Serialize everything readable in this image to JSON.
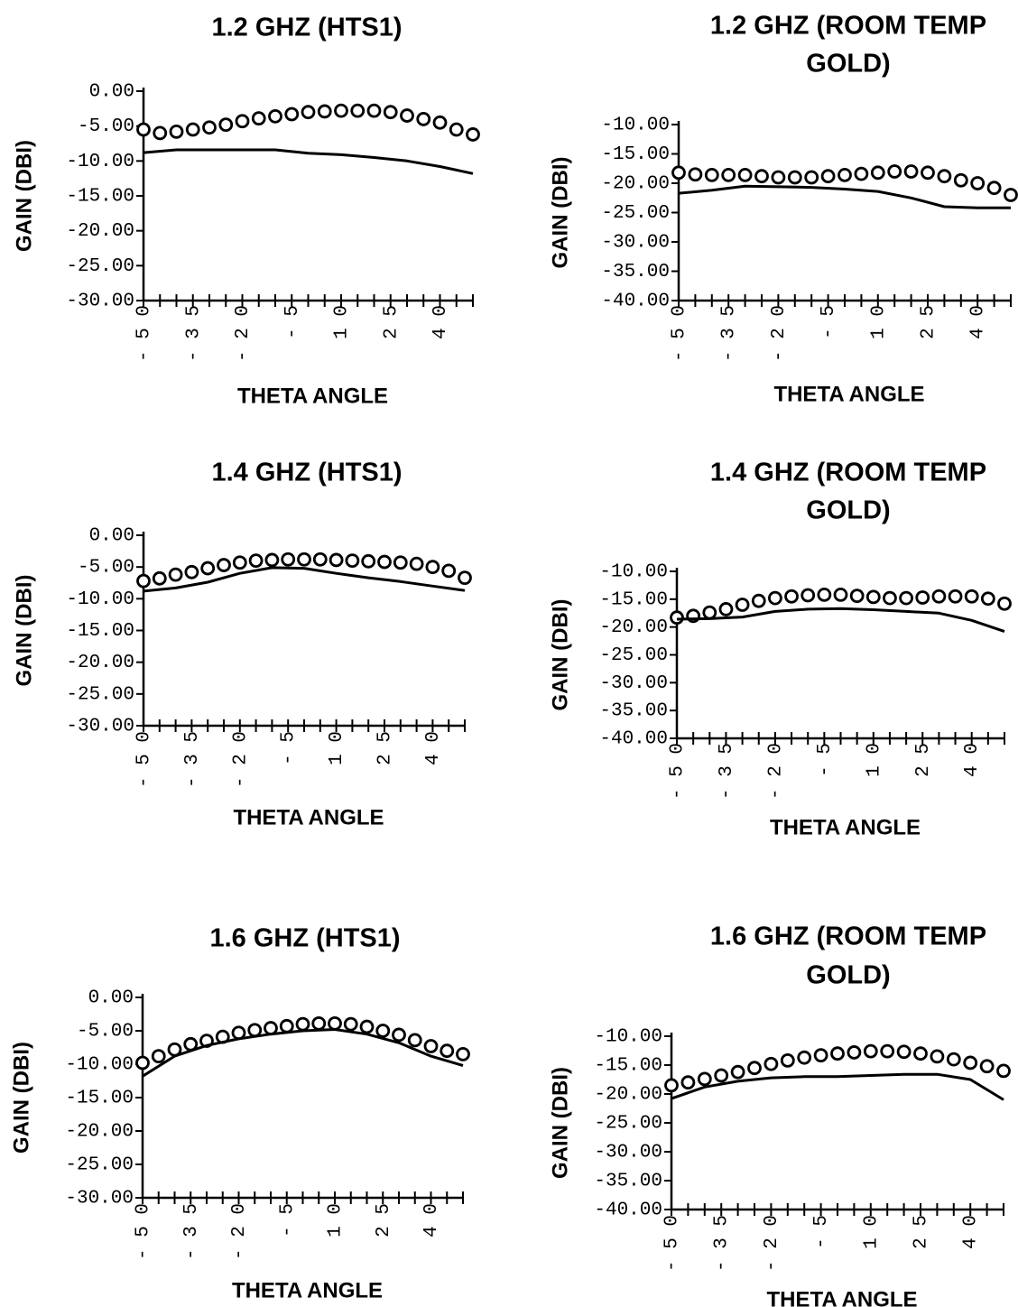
{
  "chart_data": [
    {
      "type": "line",
      "title_lines": [
        "1.2  GHZ  (HTS1)"
      ],
      "xlabel": "THETA ANGLE",
      "ylabel": "GAIN  (DBI)",
      "ylim": [
        -30,
        0
      ],
      "y_tick_labels": [
        "0.00",
        "-5.00",
        "-10.00",
        "-15.00",
        "-20.00",
        "-25.00",
        "-30.00"
      ],
      "x_tick_labels": [
        "-50",
        "-35",
        "-20",
        "-5",
        "10",
        "25",
        "40"
      ],
      "xlim": [
        -50,
        50
      ],
      "series": [
        {
          "marker": "circle",
          "x": [
            -50,
            -45,
            -40,
            -35,
            -30,
            -25,
            -20,
            -15,
            -10,
            -5,
            0,
            5,
            10,
            15,
            20,
            25,
            30,
            35,
            40,
            45,
            50
          ],
          "y": [
            -5.5,
            -6.0,
            -5.8,
            -5.5,
            -5.2,
            -4.8,
            -4.3,
            -3.9,
            -3.6,
            -3.3,
            -3.0,
            -2.9,
            -2.8,
            -2.8,
            -2.8,
            -3.0,
            -3.5,
            -4.0,
            -4.5,
            -5.5,
            -6.2
          ]
        },
        {
          "marker": "none",
          "x": [
            -50,
            -40,
            -30,
            -20,
            -10,
            0,
            10,
            20,
            30,
            40,
            50
          ],
          "y": [
            -8.8,
            -8.4,
            -8.4,
            -8.4,
            -8.4,
            -8.9,
            -9.1,
            -9.5,
            -10.0,
            -10.8,
            -11.8
          ]
        }
      ]
    },
    {
      "type": "line",
      "title_lines": [
        "1.2 GHZ (ROOM TEMP",
        "GOLD)"
      ],
      "xlabel": "THETA ANGLE",
      "ylabel": "GAIN  (DBI)",
      "ylim": [
        -40,
        -10
      ],
      "y_tick_labels": [
        "-10.00",
        "-15.00",
        "-20.00",
        "-25.00",
        "-30.00",
        "-35.00",
        "-40.00"
      ],
      "x_tick_labels": [
        "-50",
        "-35",
        "-20",
        "-5",
        "10",
        "25",
        "40"
      ],
      "xlim": [
        -50,
        50
      ],
      "series": [
        {
          "marker": "circle",
          "x": [
            -50,
            -45,
            -40,
            -35,
            -30,
            -25,
            -20,
            -15,
            -10,
            -5,
            0,
            5,
            10,
            15,
            20,
            25,
            30,
            35,
            40,
            45,
            50
          ],
          "y": [
            -18.2,
            -18.5,
            -18.6,
            -18.6,
            -18.6,
            -18.8,
            -19.0,
            -19.0,
            -19.0,
            -18.8,
            -18.6,
            -18.4,
            -18.2,
            -18.0,
            -18.0,
            -18.2,
            -18.8,
            -19.5,
            -20.0,
            -20.8,
            -22.0
          ]
        },
        {
          "marker": "none",
          "x": [
            -50,
            -40,
            -30,
            -20,
            -10,
            0,
            10,
            20,
            30,
            40,
            50
          ],
          "y": [
            -21.7,
            -21.2,
            -20.5,
            -20.6,
            -20.7,
            -21.0,
            -21.4,
            -22.5,
            -24.0,
            -24.2,
            -24.2
          ]
        }
      ]
    },
    {
      "type": "line",
      "title_lines": [
        "1.4  GHZ  (HTS1)"
      ],
      "xlabel": "THETA ANGLE",
      "ylabel": "GAIN  (DBI)",
      "ylim": [
        -30,
        0
      ],
      "y_tick_labels": [
        "0.00",
        "-5.00",
        "-10.00",
        "-15.00",
        "-20.00",
        "-25.00",
        "-30.00"
      ],
      "x_tick_labels": [
        "-50",
        "-35",
        "-20",
        "-5",
        "10",
        "25",
        "40"
      ],
      "xlim": [
        -50,
        50
      ],
      "series": [
        {
          "marker": "circle",
          "x": [
            -50,
            -45,
            -40,
            -35,
            -30,
            -25,
            -20,
            -15,
            -10,
            -5,
            0,
            5,
            10,
            15,
            20,
            25,
            30,
            35,
            40,
            45,
            50
          ],
          "y": [
            -7.2,
            -6.8,
            -6.2,
            -5.8,
            -5.2,
            -4.7,
            -4.3,
            -4.0,
            -3.9,
            -3.8,
            -3.8,
            -3.8,
            -3.9,
            -4.0,
            -4.1,
            -4.2,
            -4.3,
            -4.5,
            -5.0,
            -5.6,
            -6.7
          ]
        },
        {
          "marker": "none",
          "x": [
            -50,
            -40,
            -30,
            -20,
            -10,
            0,
            10,
            20,
            30,
            40,
            50
          ],
          "y": [
            -8.8,
            -8.3,
            -7.4,
            -6.0,
            -5.1,
            -5.2,
            -6.0,
            -6.7,
            -7.3,
            -8.0,
            -8.7
          ]
        }
      ]
    },
    {
      "type": "line",
      "title_lines": [
        "1.4 GHZ (ROOM TEMP",
        "GOLD)"
      ],
      "xlabel": "THETA ANGLE",
      "ylabel": "GAIN  (DBI)",
      "ylim": [
        -40,
        -10
      ],
      "y_tick_labels": [
        "-10.00",
        "-15.00",
        "-20.00",
        "-25.00",
        "-30.00",
        "-35.00",
        "-40.00"
      ],
      "x_tick_labels": [
        "-50",
        "-35",
        "-20",
        "-5",
        "10",
        "25",
        "40"
      ],
      "xlim": [
        -50,
        50
      ],
      "series": [
        {
          "marker": "circle",
          "x": [
            -50,
            -45,
            -40,
            -35,
            -30,
            -25,
            -20,
            -15,
            -10,
            -5,
            0,
            5,
            10,
            15,
            20,
            25,
            30,
            35,
            40,
            45,
            50
          ],
          "y": [
            -18.3,
            -18.0,
            -17.4,
            -16.8,
            -16.0,
            -15.3,
            -14.8,
            -14.5,
            -14.3,
            -14.2,
            -14.2,
            -14.4,
            -14.6,
            -14.8,
            -14.8,
            -14.7,
            -14.5,
            -14.5,
            -14.5,
            -14.9,
            -15.8
          ]
        },
        {
          "marker": "none",
          "x": [
            -50,
            -40,
            -30,
            -20,
            -10,
            0,
            10,
            20,
            30,
            40,
            50
          ],
          "y": [
            -18.6,
            -18.5,
            -18.2,
            -17.2,
            -16.8,
            -16.7,
            -16.9,
            -17.2,
            -17.5,
            -18.8,
            -20.8
          ]
        }
      ]
    },
    {
      "type": "line",
      "title_lines": [
        "1.6  GHZ  (HTS1)"
      ],
      "xlabel": "THETA ANGLE",
      "ylabel": "GAIN  (DBI)",
      "ylim": [
        -30,
        0
      ],
      "y_tick_labels": [
        "0.00",
        "-5.00",
        "-10.00",
        "-15.00",
        "-20.00",
        "-25.00",
        "-30.00"
      ],
      "x_tick_labels": [
        "-50",
        "-35",
        "-20",
        "-5",
        "10",
        "25",
        "40"
      ],
      "xlim": [
        -50,
        50
      ],
      "series": [
        {
          "marker": "circle",
          "x": [
            -50,
            -45,
            -40,
            -35,
            -30,
            -25,
            -20,
            -15,
            -10,
            -5,
            0,
            5,
            10,
            15,
            20,
            25,
            30,
            35,
            40,
            45,
            50
          ],
          "y": [
            -9.8,
            -8.8,
            -7.8,
            -7.0,
            -6.5,
            -5.9,
            -5.3,
            -4.9,
            -4.6,
            -4.3,
            -4.0,
            -3.9,
            -3.9,
            -4.0,
            -4.4,
            -5.0,
            -5.6,
            -6.4,
            -7.3,
            -8.0,
            -8.5
          ]
        },
        {
          "marker": "none",
          "x": [
            -50,
            -40,
            -30,
            -20,
            -10,
            0,
            10,
            20,
            30,
            40,
            50
          ],
          "y": [
            -11.8,
            -8.8,
            -7.2,
            -6.2,
            -5.5,
            -5.0,
            -4.8,
            -5.5,
            -6.8,
            -8.8,
            -10.2
          ]
        }
      ]
    },
    {
      "type": "line",
      "title_lines": [
        "1.6 GHZ (ROOM TEMP",
        "GOLD)"
      ],
      "xlabel": "THETA ANGLE",
      "ylabel": "GAIN  (DBI)",
      "ylim": [
        -40,
        -10
      ],
      "y_tick_labels": [
        "-10.00",
        "-15.00",
        "-20.00",
        "-25.00",
        "-30.00",
        "-35.00",
        "-40.00"
      ],
      "x_tick_labels": [
        "-50",
        "-35",
        "-20",
        "-5",
        "10",
        "25",
        "40"
      ],
      "xlim": [
        -50,
        50
      ],
      "series": [
        {
          "marker": "circle",
          "x": [
            -50,
            -45,
            -40,
            -35,
            -30,
            -25,
            -20,
            -15,
            -10,
            -5,
            0,
            5,
            10,
            15,
            20,
            25,
            30,
            35,
            40,
            45,
            50
          ],
          "y": [
            -18.5,
            -18.0,
            -17.4,
            -16.8,
            -16.2,
            -15.5,
            -14.8,
            -14.2,
            -13.7,
            -13.3,
            -13.0,
            -12.8,
            -12.6,
            -12.6,
            -12.7,
            -13.0,
            -13.5,
            -14.0,
            -14.6,
            -15.2,
            -16.0
          ]
        },
        {
          "marker": "none",
          "x": [
            -50,
            -40,
            -30,
            -20,
            -10,
            0,
            10,
            20,
            30,
            40,
            50
          ],
          "y": [
            -20.8,
            -18.8,
            -17.8,
            -17.2,
            -17.0,
            -17.0,
            -16.8,
            -16.6,
            -16.6,
            -17.5,
            -21.0
          ]
        }
      ]
    }
  ]
}
